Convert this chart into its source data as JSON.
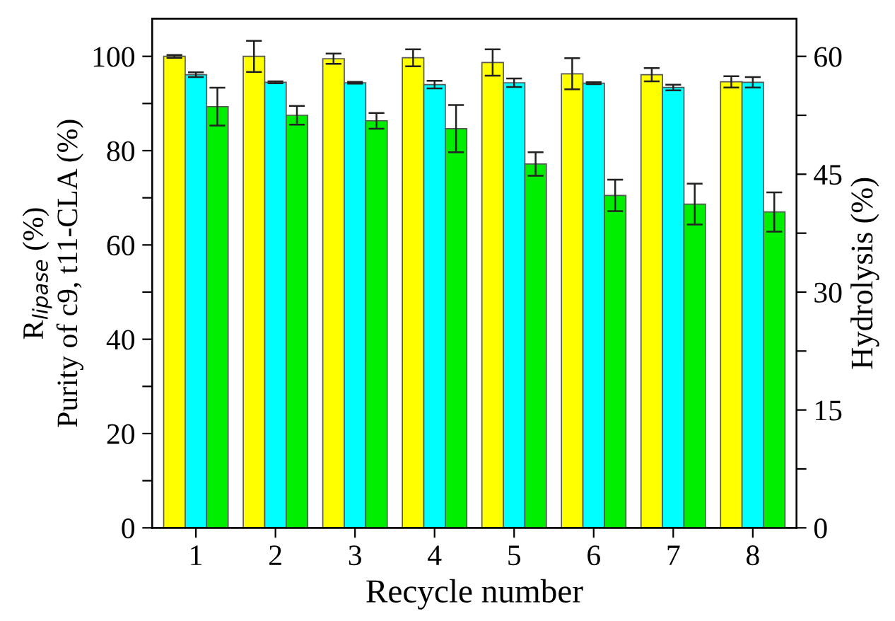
{
  "chart_data": {
    "type": "bar",
    "categories": [
      "1",
      "2",
      "3",
      "4",
      "5",
      "6",
      "7",
      "8"
    ],
    "xlabel": "Recycle number",
    "ylabel": "R$_{lipase}$ (%)\nPurity of c9, t11-CLA (%)",
    "y2label": "Hydrolysis (%)",
    "series": [
      {
        "color": "#ffff00",
        "values": [
          100,
          100,
          99.5,
          99.7,
          98.7,
          96.3,
          96.1,
          94.6
        ],
        "errors": [
          0.3,
          3.3,
          1.1,
          1.8,
          2.8,
          3.3,
          1.4,
          1.2
        ]
      },
      {
        "color": "#00ffff",
        "values": [
          96.1,
          94.5,
          94.4,
          94,
          94.4,
          94.3,
          93.4,
          94.5
        ],
        "errors": [
          0.5,
          0.2,
          0.2,
          0.8,
          0.9,
          0.2,
          0.6,
          1.1
        ]
      },
      {
        "color": "#00ee00",
        "axis": "y2",
        "values": [
          53.6,
          52.5,
          51.8,
          50.8,
          46.3,
          42.3,
          41.2,
          40.2
        ],
        "errors": [
          2.4,
          1.2,
          1.0,
          3.0,
          1.5,
          2.0,
          2.6,
          2.5
        ]
      }
    ],
    "ylim": [
      0,
      108
    ],
    "yticks": [
      0,
      {
        "value": 10,
        "label": null
      },
      20,
      {
        "value": 30,
        "label": null
      },
      40,
      {
        "value": 50,
        "label": null
      },
      60,
      {
        "value": 70,
        "label": null
      },
      80,
      {
        "value": 90,
        "label": null
      },
      100
    ],
    "y2lim": [
      0,
      64.8
    ],
    "y2ticks": [
      0,
      {
        "value": 7.5,
        "label": null
      },
      15,
      {
        "value": 22.5,
        "label": null
      },
      30,
      {
        "value": 37.5,
        "label": null
      },
      45,
      {
        "value": 52.5,
        "label": null
      },
      60
    ],
    "grid": false,
    "legend": false
  }
}
